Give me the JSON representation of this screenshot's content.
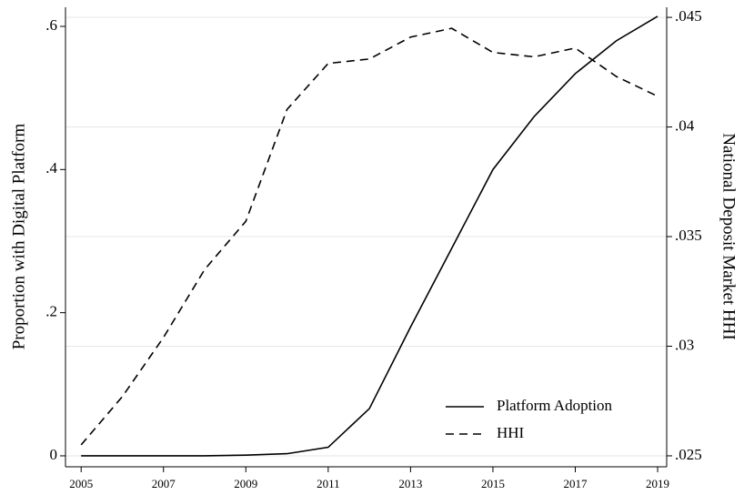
{
  "chart_data": {
    "type": "line",
    "x": [
      2005,
      2006,
      2007,
      2008,
      2009,
      2010,
      2011,
      2012,
      2013,
      2014,
      2015,
      2016,
      2017,
      2018,
      2019
    ],
    "series": [
      {
        "name": "Platform Adoption",
        "color": "#000000",
        "dash": "solid",
        "axis": "y",
        "values": [
          0,
          0,
          0,
          0,
          0.001,
          0.003,
          0.012,
          0.066,
          0.18,
          0.29,
          0.4,
          0.474,
          0.534,
          0.58,
          0.614
        ]
      },
      {
        "name": "HHI",
        "color": "#000000",
        "dash": "dashed",
        "axis": "y2",
        "values": [
          0.0255,
          0.0277,
          0.0304,
          0.0335,
          0.0357,
          0.0408,
          0.0429,
          0.0431,
          0.0441,
          0.0445,
          0.0434,
          0.0432,
          0.0436,
          0.0423,
          0.0414
        ]
      }
    ],
    "ylabel": "Proportion with Digital Platform",
    "y2label": "National Deposit Market HHI",
    "xlim": [
      2004.62,
      2019.22
    ],
    "xticks": [
      2005,
      2007,
      2009,
      2011,
      2013,
      2015,
      2017,
      2019
    ],
    "ylim": [
      -0.0153,
      0.6267
    ],
    "yticks": [
      {
        "value": 0,
        "label": "0"
      },
      {
        "value": 0.2,
        "label": ".2"
      },
      {
        "value": 0.4,
        "label": ".4"
      },
      {
        "value": 0.6,
        "label": ".6"
      }
    ],
    "y2lim": [
      0.0245,
      0.04546
    ],
    "y2ticks": [
      {
        "value": 0.025,
        "label": ".025"
      },
      {
        "value": 0.03,
        "label": ".03"
      },
      {
        "value": 0.035,
        "label": ".035"
      },
      {
        "value": 0.04,
        "label": ".04"
      },
      {
        "value": 0.045,
        "label": ".045"
      }
    ],
    "grid": "y2",
    "legend": "lower right"
  }
}
